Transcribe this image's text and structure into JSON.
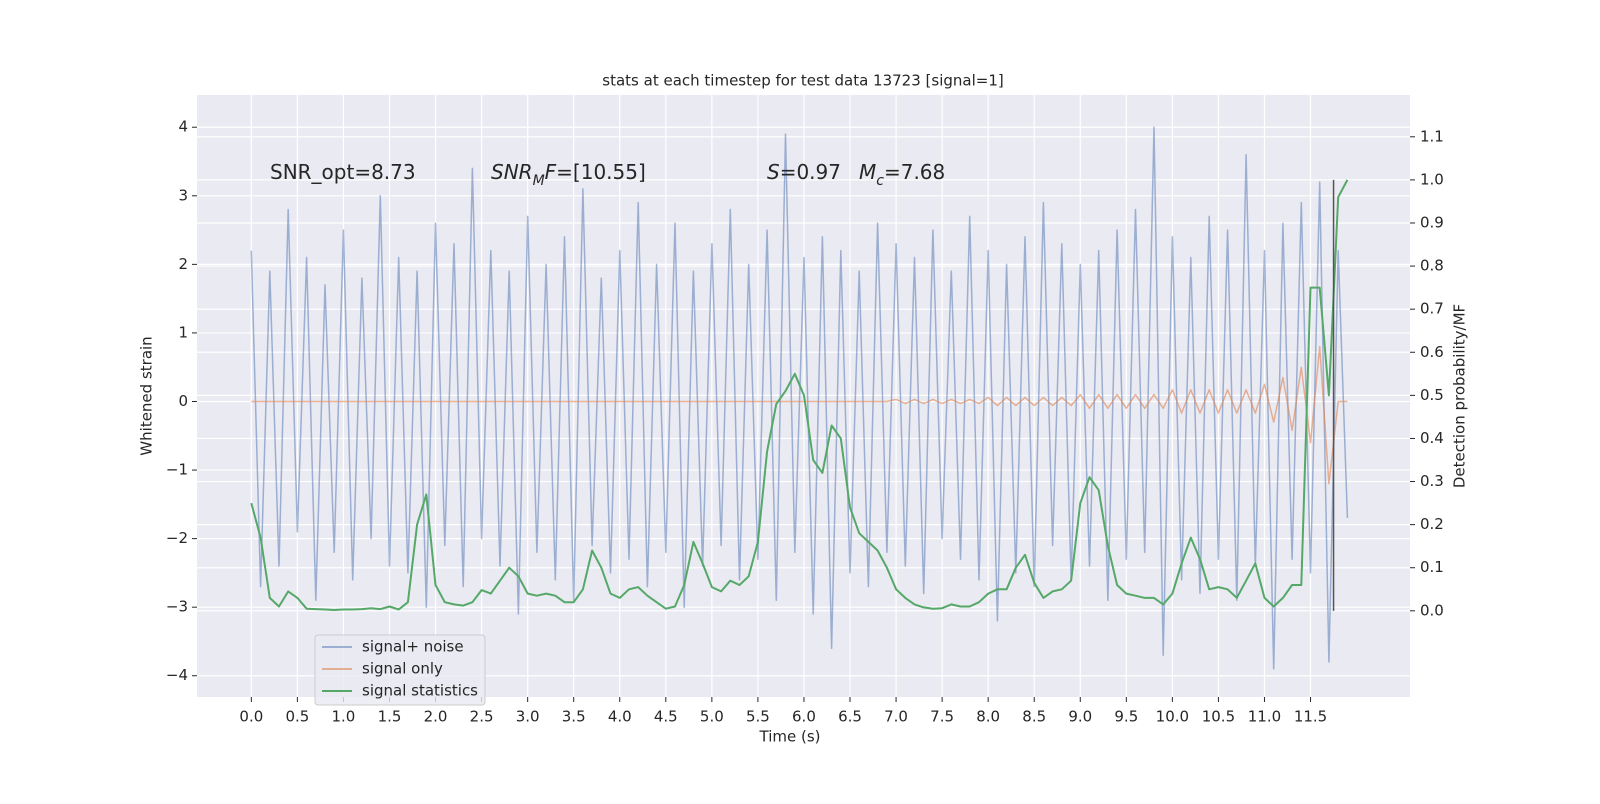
{
  "chart_data": {
    "type": "line",
    "title": "stats at each timestep for test data 13723 [signal=1]",
    "xlabel": "Time (s)",
    "ylabel": "Whitened strain",
    "y2label": "Detection probability/MF",
    "annotations": [
      [
        {
          "text": "SNR_opt=8.73"
        }
      ],
      [
        {
          "text": "SNR",
          "italic": true
        },
        {
          "text": "M",
          "italic": true,
          "sub": true
        },
        {
          "text": "F",
          "italic": true
        },
        {
          "text": "=[10.55]"
        }
      ],
      [
        {
          "text": "S",
          "italic": true
        },
        {
          "text": "=0.97"
        }
      ],
      [
        {
          "text": "M",
          "italic": true
        },
        {
          "text": "c",
          "italic": true,
          "sub": true
        },
        {
          "text": "=7.68"
        }
      ]
    ],
    "x": [
      0,
      0.1,
      0.2,
      0.3,
      0.4,
      0.5,
      0.6,
      0.7,
      0.8,
      0.9,
      1,
      1.1,
      1.2,
      1.3,
      1.4,
      1.5,
      1.6,
      1.7,
      1.8,
      1.9,
      2,
      2.1,
      2.2,
      2.3,
      2.4,
      2.5,
      2.6,
      2.7,
      2.8,
      2.9,
      3,
      3.1,
      3.2,
      3.3,
      3.4,
      3.5,
      3.6,
      3.7,
      3.8,
      3.9,
      4,
      4.1,
      4.2,
      4.3,
      4.4,
      4.5,
      4.6,
      4.7,
      4.8,
      4.9,
      5,
      5.1,
      5.2,
      5.3,
      5.4,
      5.5,
      5.6,
      5.7,
      5.8,
      5.9,
      6,
      6.1,
      6.2,
      6.3,
      6.4,
      6.5,
      6.6,
      6.7,
      6.8,
      6.9,
      7,
      7.1,
      7.2,
      7.3,
      7.4,
      7.5,
      7.6,
      7.7,
      7.8,
      7.9,
      8,
      8.1,
      8.2,
      8.3,
      8.4,
      8.5,
      8.6,
      8.7,
      8.8,
      8.9,
      9,
      9.1,
      9.2,
      9.3,
      9.4,
      9.5,
      9.6,
      9.7,
      9.8,
      9.9,
      10,
      10.1,
      10.2,
      10.3,
      10.4,
      10.5,
      10.6,
      10.7,
      10.8,
      10.9,
      11,
      11.1,
      11.2,
      11.3,
      11.4,
      11.5,
      11.6,
      11.7,
      11.8,
      11.9
    ],
    "series": [
      {
        "name": "signal+ noise",
        "color": "#4c72b0",
        "alpha": 0.5,
        "axis": "y",
        "values": [
          2.2,
          -2.7,
          1.9,
          -2.4,
          2.8,
          -1.9,
          2.1,
          -2.9,
          1.7,
          -2.2,
          2.5,
          -2.6,
          1.8,
          -2.0,
          3.0,
          -2.4,
          2.1,
          -2.5,
          1.9,
          -3.0,
          2.6,
          -2.1,
          2.3,
          -2.7,
          3.4,
          -2.0,
          2.2,
          -2.4,
          1.9,
          -3.1,
          2.7,
          -2.2,
          2.0,
          -2.6,
          2.4,
          -2.9,
          3.1,
          -2.1,
          1.8,
          -2.5,
          2.2,
          -2.3,
          2.9,
          -2.7,
          2.0,
          -2.2,
          2.6,
          -3.0,
          1.9,
          -2.4,
          2.3,
          -2.1,
          2.8,
          -2.6,
          2.0,
          -2.3,
          2.5,
          -2.9,
          3.9,
          -2.2,
          2.1,
          -3.1,
          2.4,
          -3.6,
          2.2,
          -2.5,
          1.9,
          -2.7,
          2.6,
          -2.2,
          2.3,
          -2.4,
          2.1,
          -2.8,
          2.5,
          -2.0,
          1.9,
          -2.3,
          2.7,
          -2.6,
          2.2,
          -3.2,
          2.0,
          -2.5,
          2.4,
          -2.7,
          2.9,
          -2.1,
          2.3,
          -2.6,
          2.0,
          -2.4,
          2.2,
          -2.9,
          2.5,
          -2.3,
          2.8,
          -2.2,
          4.0,
          -3.7,
          2.4,
          -2.6,
          2.1,
          -2.8,
          2.7,
          -2.3,
          2.5,
          -2.9,
          3.6,
          -2.4,
          2.2,
          -3.9,
          2.6,
          -2.3,
          2.9,
          -2.5,
          3.2,
          -3.8,
          2.2,
          -1.7
        ]
      },
      {
        "name": "signal only",
        "color": "#dd8452",
        "alpha": 0.6,
        "axis": "y",
        "values": [
          0,
          0,
          0,
          0,
          0,
          0,
          0,
          0,
          0,
          0,
          0,
          0,
          0,
          0,
          0,
          0,
          0,
          0,
          0,
          0,
          0,
          0,
          0,
          0,
          0,
          0,
          0,
          0,
          0,
          0,
          0,
          0,
          0,
          0,
          0,
          0,
          0,
          0,
          0,
          0,
          0,
          0,
          0,
          0,
          0,
          0,
          0,
          0,
          0,
          0,
          0,
          0,
          0,
          0,
          0,
          0,
          0,
          0,
          0,
          0,
          0,
          0,
          0,
          0,
          0,
          0,
          0,
          0,
          0,
          0,
          0.03,
          -0.03,
          0.03,
          -0.03,
          0.03,
          -0.03,
          0.03,
          -0.03,
          0.03,
          -0.03,
          0.06,
          -0.06,
          0.06,
          -0.06,
          0.06,
          -0.06,
          0.06,
          -0.06,
          0.06,
          -0.06,
          0.1,
          -0.1,
          0.1,
          -0.1,
          0.1,
          -0.1,
          0.1,
          -0.1,
          0.1,
          -0.1,
          0.17,
          -0.17,
          0.17,
          -0.17,
          0.17,
          -0.17,
          0.17,
          -0.17,
          0.17,
          -0.17,
          0.25,
          -0.3,
          0.35,
          -0.42,
          0.5,
          -0.6,
          0.8,
          -1.2,
          0,
          0
        ]
      },
      {
        "name": "signal statistics",
        "color": "#55a868",
        "alpha": 1,
        "axis": "y2",
        "values": [
          0.25,
          0.17,
          0.03,
          0.01,
          0.045,
          0.03,
          0.005,
          0.004,
          0.003,
          0.002,
          0.003,
          0.003,
          0.004,
          0.006,
          0.004,
          0.01,
          0.003,
          0.02,
          0.2,
          0.27,
          0.06,
          0.02,
          0.015,
          0.012,
          0.02,
          0.048,
          0.04,
          0.07,
          0.1,
          0.08,
          0.04,
          0.035,
          0.04,
          0.035,
          0.02,
          0.02,
          0.05,
          0.14,
          0.1,
          0.04,
          0.03,
          0.05,
          0.055,
          0.035,
          0.02,
          0.005,
          0.01,
          0.06,
          0.16,
          0.11,
          0.055,
          0.045,
          0.07,
          0.06,
          0.08,
          0.16,
          0.37,
          0.48,
          0.51,
          0.55,
          0.5,
          0.35,
          0.32,
          0.43,
          0.4,
          0.24,
          0.18,
          0.16,
          0.14,
          0.1,
          0.05,
          0.03,
          0.015,
          0.008,
          0.005,
          0.006,
          0.015,
          0.01,
          0.01,
          0.02,
          0.04,
          0.05,
          0.05,
          0.1,
          0.13,
          0.065,
          0.03,
          0.045,
          0.05,
          0.07,
          0.25,
          0.31,
          0.28,
          0.15,
          0.06,
          0.04,
          0.035,
          0.03,
          0.03,
          0.015,
          0.04,
          0.11,
          0.17,
          0.12,
          0.05,
          0.055,
          0.05,
          0.03,
          0.07,
          0.11,
          0.03,
          0.01,
          0.03,
          0.06,
          0.06,
          0.75,
          0.75,
          0.5,
          0.96,
          1.0
        ]
      }
    ],
    "vline": {
      "x": 11.75,
      "y2": [
        0,
        1
      ],
      "color": "#555555"
    },
    "xlim": [
      -0.59,
      12.58
    ],
    "xticks": [
      {
        "value": 0,
        "label": "0.0"
      },
      0.5,
      {
        "value": 1,
        "label": "1.0"
      },
      1.5,
      {
        "value": 2,
        "label": "2.0"
      },
      2.5,
      {
        "value": 3,
        "label": "3.0"
      },
      3.5,
      {
        "value": 4,
        "label": "4.0"
      },
      4.5,
      {
        "value": 5,
        "label": "5.0"
      },
      5.5,
      {
        "value": 6,
        "label": "6.0"
      },
      6.5,
      {
        "value": 7,
        "label": "7.0"
      },
      7.5,
      {
        "value": 8,
        "label": "8.0"
      },
      8.5,
      {
        "value": 9,
        "label": "9.0"
      },
      9.5,
      {
        "value": 10,
        "label": "10.0"
      },
      10.5,
      {
        "value": 11,
        "label": "11.0"
      },
      11.5
    ],
    "ylim": [
      -4.31,
      4.47
    ],
    "yticks": [
      {
        "value": -4,
        "label": "−4"
      },
      {
        "value": -3,
        "label": "−3"
      },
      {
        "value": -2,
        "label": "−2"
      },
      {
        "value": -1,
        "label": "−1"
      },
      0,
      1,
      2,
      3,
      4
    ],
    "y2lim": [
      -0.2,
      1.197
    ],
    "y2ticks": [
      {
        "value": 0,
        "label": "0.0"
      },
      0.1,
      0.2,
      0.3,
      0.4,
      0.5,
      0.6,
      0.7,
      0.8,
      0.9,
      {
        "value": 1,
        "label": "1.0"
      },
      1.1
    ],
    "grid": true,
    "legend": "lower left"
  }
}
